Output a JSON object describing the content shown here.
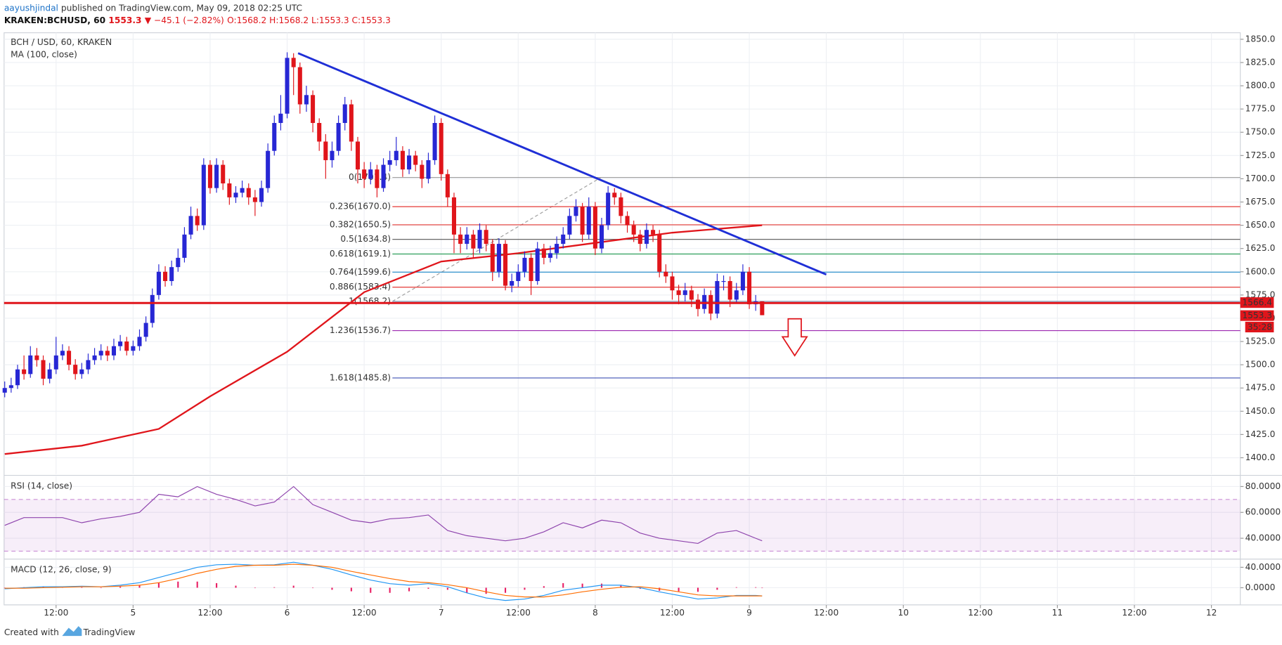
{
  "header": {
    "author": "aayushjindal",
    "text": "published on TradingView.com, May 09, 2018 02:25 UTC",
    "symbol": "KRAKEN:BCHUSD, 60",
    "last": "1553.3",
    "change": "▼ −45.1 (−2.82%)",
    "ohlc": "O:1568.2 H:1568.2 L:1553.3 C:1553.3"
  },
  "footer": {
    "created": "Created with",
    "brand": "TradingView"
  },
  "chart_data": [
    {
      "type": "candlestick",
      "title": "BCH / USD, 60, KRAKEN",
      "grid": true,
      "up_color": "#2727d4",
      "down_color": "#e0151b",
      "x": [
        4,
        5,
        6,
        7,
        8,
        9,
        10,
        11,
        12,
        13,
        14,
        15,
        16,
        17,
        18,
        19,
        20,
        21,
        22,
        23,
        24,
        25,
        26,
        27,
        28,
        29,
        30,
        31,
        32,
        33,
        34,
        35,
        36,
        37,
        38,
        39,
        40,
        41,
        42,
        43,
        44,
        45,
        46,
        47,
        48,
        49,
        50,
        51,
        52,
        53,
        54,
        55,
        56,
        57,
        58,
        59,
        60,
        61,
        62,
        63,
        64,
        65,
        66,
        67,
        68,
        69,
        70,
        71,
        72,
        73,
        74,
        75,
        76,
        77,
        78,
        79,
        80,
        81,
        82,
        83,
        84,
        85,
        86,
        87,
        88,
        89,
        90,
        91,
        92,
        93,
        94,
        95,
        96,
        97,
        98,
        99,
        100,
        101,
        102,
        103,
        104,
        105,
        106,
        107,
        108,
        109,
        110,
        111,
        112,
        113,
        114,
        115,
        116,
        117,
        118,
        119,
        120,
        121,
        122
      ],
      "open": [
        1470,
        1475,
        1478,
        1495,
        1490,
        1510,
        1505,
        1485,
        1495,
        1510,
        1515,
        1500,
        1490,
        1495,
        1505,
        1510,
        1515,
        1510,
        1520,
        1525,
        1515,
        1520,
        1530,
        1545,
        1575,
        1600,
        1590,
        1605,
        1615,
        1640,
        1660,
        1650,
        1715,
        1690,
        1715,
        1695,
        1680,
        1685,
        1690,
        1680,
        1675,
        1690,
        1730,
        1760,
        1770,
        1830,
        1820,
        1780,
        1790,
        1760,
        1740,
        1720,
        1730,
        1760,
        1780,
        1740,
        1710,
        1700,
        1710,
        1690,
        1715,
        1720,
        1730,
        1710,
        1725,
        1715,
        1700,
        1720,
        1760,
        1705,
        1680,
        1640,
        1630,
        1640,
        1625,
        1645,
        1630,
        1600,
        1630,
        1585,
        1590,
        1600,
        1615,
        1590,
        1625,
        1615,
        1620,
        1630,
        1640,
        1660,
        1670,
        1640,
        1670,
        1625,
        1650,
        1685,
        1680,
        1660,
        1650,
        1640,
        1630,
        1645,
        1640,
        1600,
        1595,
        1580,
        1575,
        1580,
        1570,
        1560,
        1575,
        1555,
        1590,
        1590,
        1570,
        1580,
        1600,
        1565,
        1568.2
      ],
      "high": [
        1482,
        1486,
        1500,
        1510,
        1520,
        1518,
        1510,
        1502,
        1530,
        1522,
        1520,
        1506,
        1502,
        1512,
        1518,
        1522,
        1520,
        1528,
        1532,
        1530,
        1526,
        1538,
        1552,
        1582,
        1608,
        1606,
        1612,
        1625,
        1648,
        1670,
        1668,
        1722,
        1720,
        1722,
        1720,
        1700,
        1692,
        1698,
        1695,
        1688,
        1698,
        1738,
        1768,
        1790,
        1836,
        1835,
        1825,
        1800,
        1795,
        1765,
        1748,
        1740,
        1768,
        1788,
        1785,
        1745,
        1718,
        1718,
        1715,
        1722,
        1730,
        1745,
        1735,
        1732,
        1730,
        1720,
        1728,
        1768,
        1765,
        1710,
        1685,
        1648,
        1648,
        1645,
        1652,
        1650,
        1635,
        1636,
        1634,
        1598,
        1608,
        1622,
        1620,
        1632,
        1630,
        1628,
        1638,
        1648,
        1668,
        1678,
        1674,
        1680,
        1675,
        1658,
        1692,
        1690,
        1685,
        1665,
        1655,
        1645,
        1652,
        1650,
        1645,
        1608,
        1600,
        1586,
        1588,
        1585,
        1576,
        1582,
        1580,
        1598,
        1596,
        1595,
        1588,
        1608,
        1605,
        1575,
        1568.2
      ],
      "low": [
        1465,
        1470,
        1474,
        1484,
        1486,
        1498,
        1478,
        1480,
        1490,
        1505,
        1494,
        1484,
        1485,
        1490,
        1500,
        1505,
        1504,
        1505,
        1515,
        1510,
        1510,
        1515,
        1525,
        1540,
        1570,
        1584,
        1585,
        1600,
        1610,
        1635,
        1644,
        1645,
        1684,
        1685,
        1688,
        1672,
        1674,
        1680,
        1672,
        1660,
        1670,
        1685,
        1725,
        1752,
        1765,
        1790,
        1770,
        1772,
        1750,
        1730,
        1700,
        1712,
        1725,
        1752,
        1730,
        1695,
        1690,
        1694,
        1680,
        1686,
        1708,
        1714,
        1702,
        1705,
        1708,
        1690,
        1695,
        1715,
        1698,
        1670,
        1620,
        1620,
        1624,
        1615,
        1620,
        1622,
        1590,
        1594,
        1580,
        1578,
        1584,
        1594,
        1575,
        1586,
        1608,
        1610,
        1614,
        1625,
        1635,
        1654,
        1632,
        1635,
        1618,
        1620,
        1645,
        1672,
        1652,
        1642,
        1632,
        1622,
        1625,
        1632,
        1594,
        1588,
        1570,
        1565,
        1568,
        1562,
        1552,
        1555,
        1548,
        1550,
        1580,
        1562,
        1566,
        1575,
        1560,
        1558,
        1553.3
      ],
      "close": [
        1475,
        1478,
        1495,
        1490,
        1510,
        1505,
        1485,
        1495,
        1510,
        1515,
        1500,
        1490,
        1495,
        1505,
        1510,
        1515,
        1510,
        1520,
        1525,
        1515,
        1520,
        1530,
        1545,
        1575,
        1600,
        1590,
        1605,
        1615,
        1640,
        1660,
        1650,
        1715,
        1690,
        1715,
        1695,
        1680,
        1685,
        1690,
        1680,
        1675,
        1690,
        1730,
        1760,
        1770,
        1830,
        1820,
        1780,
        1790,
        1760,
        1740,
        1720,
        1730,
        1760,
        1780,
        1740,
        1710,
        1700,
        1710,
        1690,
        1715,
        1720,
        1730,
        1710,
        1725,
        1715,
        1700,
        1720,
        1760,
        1705,
        1680,
        1640,
        1630,
        1640,
        1625,
        1645,
        1630,
        1600,
        1630,
        1585,
        1590,
        1600,
        1615,
        1590,
        1625,
        1615,
        1620,
        1630,
        1640,
        1660,
        1670,
        1640,
        1670,
        1625,
        1650,
        1685,
        1680,
        1660,
        1650,
        1640,
        1630,
        1645,
        1640,
        1600,
        1595,
        1580,
        1575,
        1580,
        1570,
        1560,
        1575,
        1555,
        1590,
        1590,
        1570,
        1580,
        1600,
        1565,
        1568.2,
        1553.3
      ],
      "xlim": [
        3.9,
        196.5
      ],
      "xticks": [
        {
          "value": 12,
          "label": "12:00"
        },
        {
          "value": 24,
          "label": "5"
        },
        {
          "value": 36,
          "label": "12:00"
        },
        {
          "value": 48,
          "label": "6"
        },
        {
          "value": 60,
          "label": "12:00"
        },
        {
          "value": 72,
          "label": "7"
        },
        {
          "value": 84,
          "label": "12:00"
        },
        {
          "value": 96,
          "label": "8"
        },
        {
          "value": 108,
          "label": "12:00"
        },
        {
          "value": 120,
          "label": "9"
        },
        {
          "value": 132,
          "label": "12:00"
        },
        {
          "value": 144,
          "label": "10"
        },
        {
          "value": 156,
          "label": "12:00"
        },
        {
          "value": 168,
          "label": "11"
        },
        {
          "value": 180,
          "label": "12:00"
        },
        {
          "value": 192,
          "label": "12"
        }
      ],
      "ylim": [
        1382.4,
        1857.0
      ],
      "yticks": [
        {
          "value": 1400,
          "label": "1400.0"
        },
        {
          "value": 1425,
          "label": "1425.0"
        },
        {
          "value": 1450,
          "label": "1450.0"
        },
        {
          "value": 1475,
          "label": "1475.0"
        },
        {
          "value": 1500,
          "label": "1500.0"
        },
        {
          "value": 1525,
          "label": "1525.0"
        },
        {
          "value": 1550,
          "label": "1550.0"
        },
        {
          "value": 1575,
          "label": "1575.0"
        },
        {
          "value": 1600,
          "label": "1600.0"
        },
        {
          "value": 1625,
          "label": "1625.0"
        },
        {
          "value": 1650,
          "label": "1650.0"
        },
        {
          "value": 1675,
          "label": "1675.0"
        },
        {
          "value": 1700,
          "label": "1700.0"
        },
        {
          "value": 1725,
          "label": "1725.0"
        },
        {
          "value": 1750,
          "label": "1750.0"
        },
        {
          "value": 1775,
          "label": "1775.0"
        },
        {
          "value": 1800,
          "label": "1800.0"
        },
        {
          "value": 1825,
          "label": "1825.0"
        },
        {
          "value": 1850,
          "label": "1850.0"
        }
      ],
      "moving_average": {
        "title": "MA (100, close)",
        "color": "#e0151b",
        "x": [
          4,
          16,
          28,
          36,
          48,
          60,
          72,
          84,
          96,
          108,
          122
        ],
        "values": [
          1404,
          1413,
          1431,
          1466,
          1514,
          1578,
          1611,
          1620,
          1631,
          1642,
          1650
        ]
      },
      "trendline": {
        "color": "#1f2fd6",
        "x": [
          49.7,
          132
        ],
        "values": [
          1835,
          1597
        ]
      },
      "fib": {
        "color": "#9e9e9e",
        "anchor": {
          "x": [
            64.4,
            96.9
          ],
          "values": [
            1568.2,
            1701.4
          ]
        },
        "levels": [
          {
            "label": "0(1701.4)",
            "price": 1701.4,
            "color": "#9e9e9e"
          },
          {
            "label": "0.236(1670.0)",
            "price": 1670.0,
            "color": "#e53935"
          },
          {
            "label": "0.382(1650.5)",
            "price": 1650.5,
            "color": "#e53935"
          },
          {
            "label": "0.5(1634.8)",
            "price": 1634.8,
            "color": "#555555"
          },
          {
            "label": "0.618(1619.1)",
            "price": 1619.1,
            "color": "#2e9e5b"
          },
          {
            "label": "0.764(1599.6)",
            "price": 1599.6,
            "color": "#1e88c8"
          },
          {
            "label": "0.886(1583.4)",
            "price": 1583.4,
            "color": "#e53935"
          },
          {
            "label": "1(1568.2)",
            "price": 1568.2,
            "color": "#7fa7c4"
          },
          {
            "label": "1.236(1536.7)",
            "price": 1536.7,
            "color": "#9c27b0"
          },
          {
            "label": "1.618(1485.8)",
            "price": 1485.8,
            "color": "#3f51b5"
          }
        ]
      },
      "support": {
        "price": 1566.4,
        "color": "#e0151b"
      },
      "last_price": 1553.3,
      "countdown": "35:28"
    },
    {
      "type": "line",
      "title": "RSI (14, close)",
      "grid": true,
      "x": [
        4,
        7,
        10,
        13,
        16,
        19,
        22,
        25,
        28,
        31,
        34,
        37,
        40,
        43,
        46,
        49,
        52,
        55,
        58,
        61,
        64,
        67,
        70,
        73,
        76,
        79,
        82,
        85,
        88,
        91,
        94,
        97,
        100,
        103,
        106,
        109,
        112,
        115,
        118,
        121,
        122
      ],
      "series": [
        {
          "color": "#8e44ad",
          "values": [
            50,
            56,
            56,
            56,
            52,
            55,
            57,
            60,
            74,
            72,
            80,
            74,
            70,
            65,
            68,
            80,
            66,
            60,
            54,
            52,
            55,
            56,
            58,
            46,
            42,
            40,
            38,
            40,
            45,
            52,
            48,
            54,
            52,
            44,
            40,
            38,
            36,
            44,
            46,
            40,
            38
          ]
        }
      ],
      "band": [
        30,
        70
      ],
      "band_color": "#9c27b0",
      "ylim": [
        24.5,
        87.7
      ],
      "yticks": [
        {
          "value": 40,
          "label": "40.0000"
        },
        {
          "value": 60,
          "label": "60.0000"
        },
        {
          "value": 80,
          "label": "80.0000"
        }
      ]
    },
    {
      "type": "line",
      "title": "MACD (12, 26, close, 9)",
      "grid": true,
      "x": [
        4,
        7,
        10,
        13,
        16,
        19,
        22,
        25,
        28,
        31,
        34,
        37,
        40,
        43,
        46,
        49,
        52,
        55,
        58,
        61,
        64,
        67,
        70,
        73,
        76,
        79,
        82,
        85,
        88,
        91,
        94,
        97,
        100,
        103,
        106,
        109,
        112,
        115,
        118,
        121,
        122
      ],
      "series": [
        {
          "color": "#2196f3",
          "values": [
            -2,
            0,
            2,
            2,
            3,
            2,
            5,
            10,
            20,
            30,
            40,
            45,
            46,
            44,
            45,
            50,
            44,
            36,
            25,
            15,
            8,
            5,
            8,
            2,
            -10,
            -20,
            -25,
            -22,
            -15,
            -5,
            0,
            5,
            5,
            0,
            -8,
            -15,
            -22,
            -20,
            -15,
            -15,
            -16
          ]
        },
        {
          "color": "#ff6d00",
          "values": [
            -1,
            -1,
            0,
            1,
            2,
            2,
            3,
            5,
            10,
            18,
            28,
            36,
            42,
            44,
            44,
            46,
            44,
            40,
            32,
            25,
            18,
            12,
            10,
            6,
            0,
            -8,
            -15,
            -18,
            -18,
            -14,
            -8,
            -3,
            1,
            2,
            -2,
            -8,
            -14,
            -16,
            -16,
            -16,
            -16
          ]
        }
      ],
      "bars": {
        "color": "#e91e63",
        "values": [
          -1,
          1,
          2,
          1,
          1,
          0,
          2,
          5,
          10,
          12,
          12,
          9,
          4,
          0,
          1,
          4,
          0,
          -4,
          -7,
          -10,
          -10,
          -7,
          -2,
          -4,
          -10,
          -12,
          -10,
          -4,
          3,
          9,
          8,
          8,
          4,
          -2,
          -6,
          -7,
          -8,
          -4,
          1,
          1,
          0
        ]
      },
      "ylim": [
        -33.6,
        54.4
      ],
      "yticks": [
        {
          "value": 0,
          "label": "0.0000"
        },
        {
          "value": 40,
          "label": "40.0000"
        }
      ]
    }
  ]
}
